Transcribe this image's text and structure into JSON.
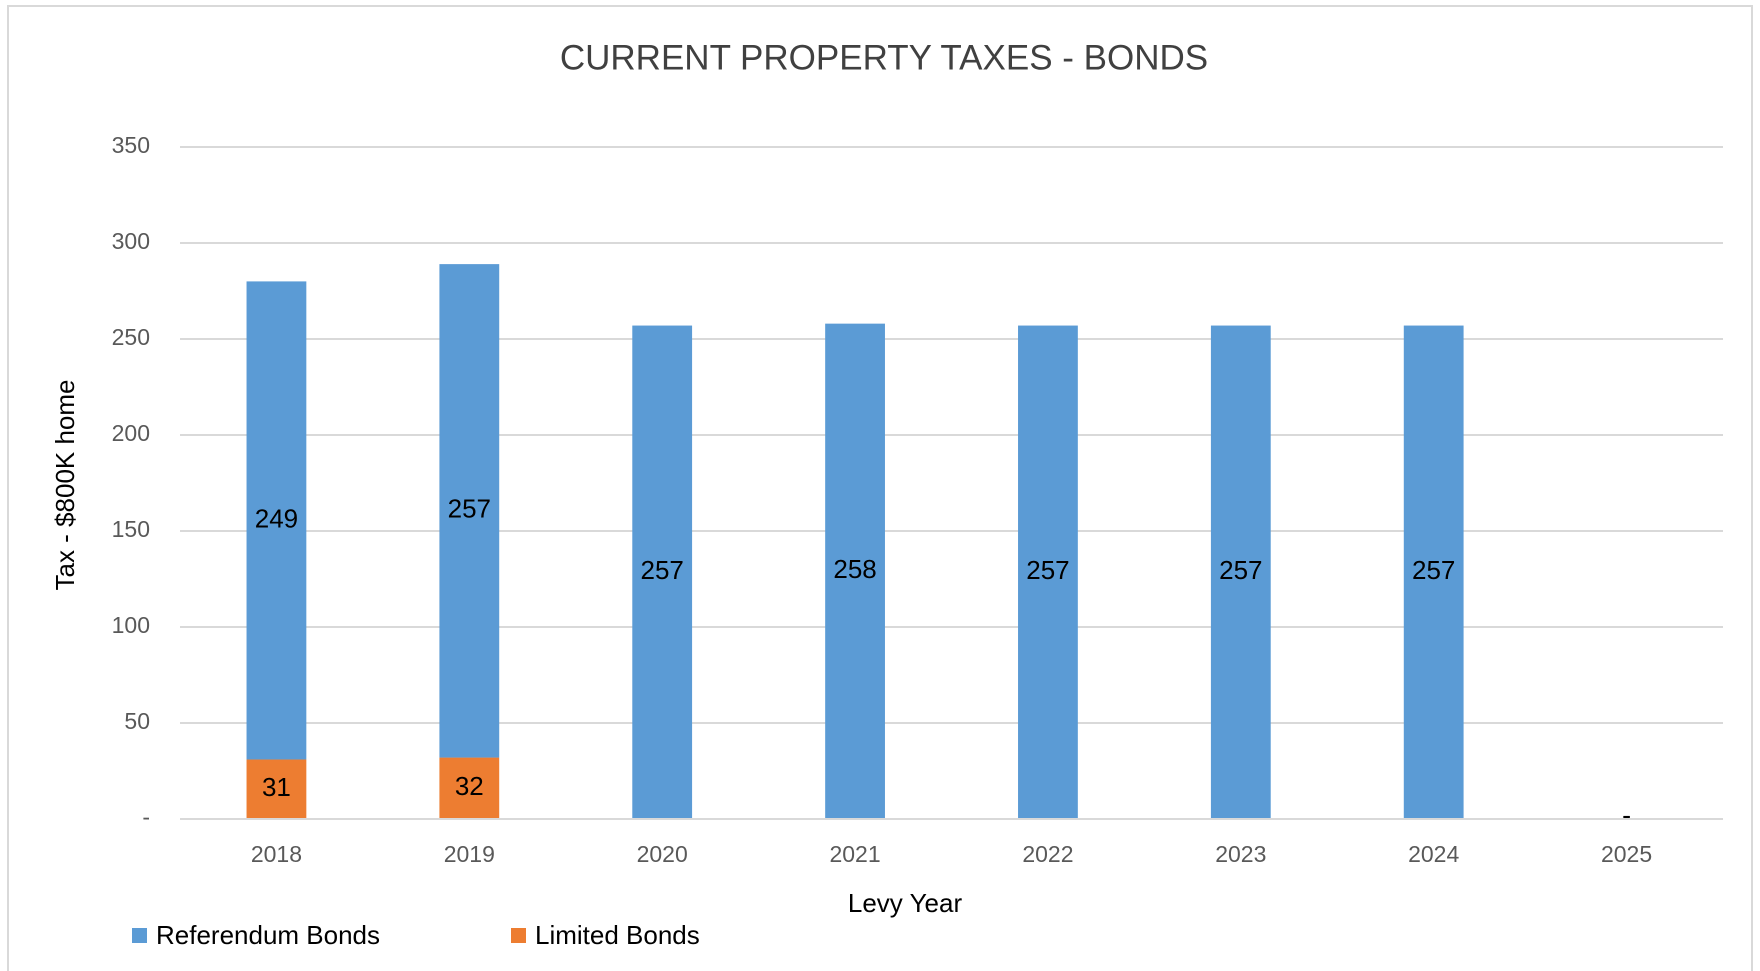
{
  "chart_data": {
    "type": "stacked_bar",
    "title": "CURRENT PROPERTY TAXES - BONDS",
    "x_label": "Levy Year",
    "y_label": "Tax - $800K home",
    "categories": [
      "2018",
      "2019",
      "2020",
      "2021",
      "2022",
      "2023",
      "2024",
      "2025"
    ],
    "series": [
      {
        "name": "Limited Bonds",
        "color": "#ed7d31",
        "values": [
          31,
          32,
          0,
          0,
          0,
          0,
          0,
          0
        ],
        "value_labels": [
          "31",
          "32",
          "-",
          "-",
          "-",
          "-",
          "-",
          "-"
        ]
      },
      {
        "name": "Referendum Bonds",
        "color": "#5b9bd5",
        "values": [
          249,
          257,
          257,
          258,
          257,
          257,
          257,
          0
        ],
        "value_labels": [
          "249",
          "257",
          "257",
          "258",
          "257",
          "257",
          "257",
          "-"
        ]
      }
    ],
    "legend_order": [
      1,
      0
    ],
    "ylim": [
      0,
      350
    ],
    "yticks": [
      {
        "value": 0,
        "label": "-"
      },
      50,
      100,
      150,
      200,
      250,
      300,
      350
    ],
    "grid": true,
    "legend": "bottom-left"
  }
}
